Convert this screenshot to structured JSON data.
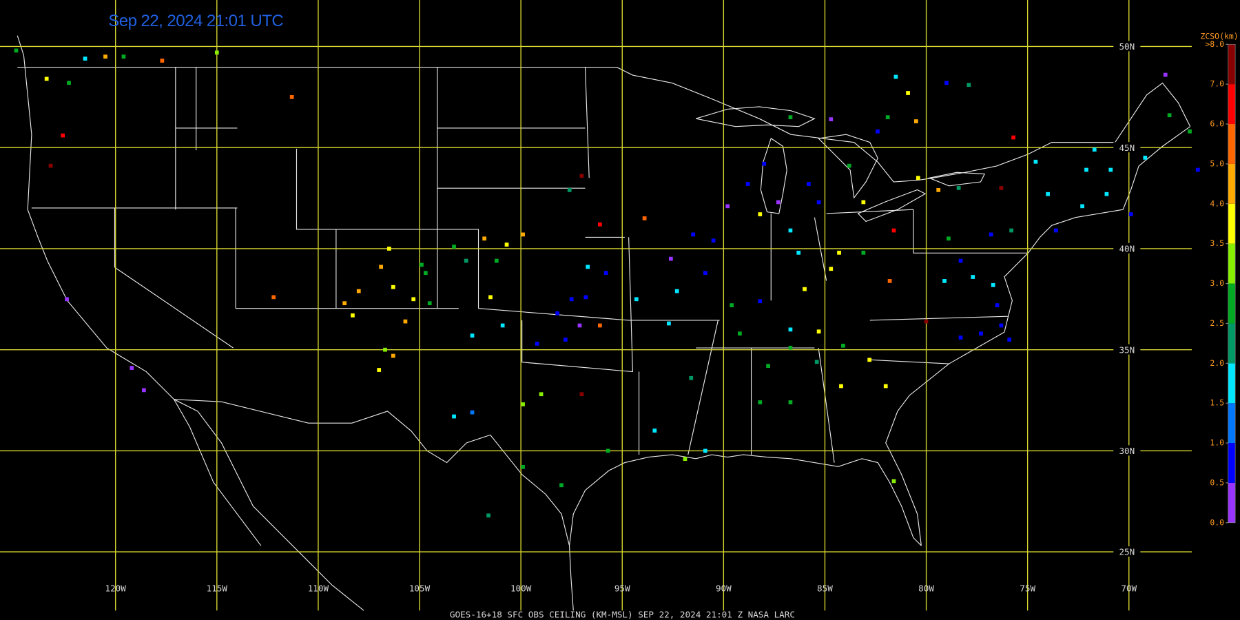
{
  "map": {
    "title": "Sep 22, 2024 21:01 UTC",
    "footer": "GOES-16+18  SFC OBS CEILING (KM-MSL)  SEP 22, 2024 21:01 Z  NASA LARC",
    "lonlim": [
      -125.7,
      -66.9
    ],
    "latlim": [
      22.1,
      52.3
    ],
    "lon_ticks": [
      {
        "value": -120,
        "label": "120W"
      },
      {
        "value": -115,
        "label": "115W"
      },
      {
        "value": -110,
        "label": "110W"
      },
      {
        "value": -105,
        "label": "105W"
      },
      {
        "value": -100,
        "label": "100W"
      },
      {
        "value": -95,
        "label": "95W"
      },
      {
        "value": -90,
        "label": "90W"
      },
      {
        "value": -85,
        "label": "85W"
      },
      {
        "value": -80,
        "label": "80W"
      },
      {
        "value": -75,
        "label": "75W"
      },
      {
        "value": -70,
        "label": "70W"
      }
    ],
    "lat_ticks": [
      {
        "value": 50,
        "label": "50N"
      },
      {
        "value": 45,
        "label": "45N"
      },
      {
        "value": 40,
        "label": "40N"
      },
      {
        "value": 35,
        "label": "35N"
      },
      {
        "value": 30,
        "label": "30N"
      },
      {
        "value": 25,
        "label": "25N"
      }
    ],
    "colorbar": {
      "title": "ZCSO(km)",
      "ticks": [
        {
          "value": 0,
          "label": "0.0"
        },
        {
          "value": 0.5,
          "label": "0.5"
        },
        {
          "value": 1,
          "label": "1.0"
        },
        {
          "value": 1.5,
          "label": "1.5"
        },
        {
          "value": 2,
          "label": "2.0"
        },
        {
          "value": 2.5,
          "label": "2.5"
        },
        {
          "value": 3,
          "label": "3.0"
        },
        {
          "value": 3.5,
          "label": "3.5"
        },
        {
          "value": 4,
          "label": "4.0"
        },
        {
          "value": 5,
          "label": "5.0"
        },
        {
          "value": 6,
          "label": "6.0"
        },
        {
          "value": 7,
          "label": "7.0"
        },
        {
          "value": 8,
          "label": ">8.0"
        }
      ],
      "colors": [
        "#9933ff",
        "#0000ff",
        "#0077ff",
        "#00e8ff",
        "#009966",
        "#00aa22",
        "#88ee00",
        "#ffff00",
        "#ffaa00",
        "#ff6600",
        "#ff0000",
        "#880000"
      ]
    },
    "stations": {
      "lon": [
        -124.9,
        -123.4,
        -122.3,
        -121.5,
        -120.5,
        -119.6,
        -117.7,
        -115.0,
        -111.3,
        -123.2,
        -122.6,
        -122.4,
        -119.2,
        -118.6,
        -112.2,
        -106.5,
        -106.9,
        -108.0,
        -108.7,
        -108.3,
        -106.3,
        -105.3,
        -105.7,
        -106.3,
        -107.0,
        -106.7,
        -104.7,
        -104.9,
        -104.5,
        -103.3,
        -101.8,
        -99.9,
        -100.7,
        -101.2,
        -102.7,
        -97.5,
        -96.8,
        -98.2,
        -97.8,
        -99.2,
        -97.1,
        -96.7,
        -95.8,
        -96.1,
        -100.9,
        -102.4,
        -101.5,
        -103.3,
        -102.4,
        -99.9,
        -97.0,
        -99.0,
        -99.9,
        -98.0,
        -101.6,
        -93.4,
        -95.7,
        -94.3,
        -92.7,
        -93.9,
        -96.1,
        -97.0,
        -97.6,
        -92.6,
        -92.3,
        -91.5,
        -90.5,
        -90.9,
        -89.8,
        -88.8,
        -88.0,
        -88.2,
        -87.3,
        -86.7,
        -86.3,
        -85.8,
        -85.3,
        -84.7,
        -83.8,
        -83.1,
        -84.3,
        -84.7,
        -86.0,
        -83.1,
        -81.6,
        -80.4,
        -79.4,
        -78.4,
        -76.3,
        -89.6,
        -89.2,
        -88.2,
        -86.7,
        -86.7,
        -85.3,
        -84.1,
        -82.8,
        -81.8,
        -80.0,
        -79.1,
        -78.3,
        -77.7,
        -76.7,
        -76.5,
        -76.3,
        -75.9,
        -77.3,
        -78.3,
        -76.8,
        -75.8,
        -73.6,
        -72.3,
        -71.1,
        -69.9,
        -72.1,
        -70.9,
        -71.7,
        -69.2,
        -68.0,
        -68.2,
        -74.6,
        -74.0,
        -75.7,
        -81.5,
        -79.0,
        -77.9,
        -80.9,
        -81.9,
        -80.5,
        -67.0,
        -66.6,
        -81.6,
        -82.0,
        -84.2,
        -85.4,
        -87.8,
        -86.7,
        -88.2,
        -91.6,
        -90.9,
        -91.9,
        -86.7,
        -82.4,
        -78.9
      ],
      "lat": [
        49.8,
        48.4,
        48.2,
        49.4,
        49.5,
        49.5,
        49.3,
        49.7,
        47.5,
        44.1,
        45.6,
        37.5,
        34.1,
        33.0,
        37.6,
        40.0,
        39.1,
        37.9,
        37.3,
        36.7,
        38.1,
        37.5,
        36.4,
        34.7,
        34.0,
        35.0,
        38.8,
        39.2,
        37.3,
        40.1,
        40.5,
        40.7,
        40.2,
        39.4,
        39.4,
        37.5,
        37.6,
        36.8,
        35.5,
        35.3,
        36.2,
        39.1,
        38.8,
        36.2,
        36.2,
        35.7,
        37.6,
        31.7,
        31.9,
        32.3,
        32.8,
        32.8,
        29.2,
        28.3,
        26.8,
        31.0,
        30.0,
        37.5,
        36.3,
        41.5,
        41.2,
        43.6,
        42.9,
        39.5,
        37.9,
        40.7,
        40.4,
        38.8,
        42.1,
        43.2,
        44.2,
        41.7,
        42.3,
        40.9,
        39.8,
        43.2,
        42.3,
        46.4,
        44.1,
        42.3,
        39.8,
        39.0,
        38.0,
        39.8,
        40.9,
        43.5,
        42.9,
        43.0,
        43.0,
        37.2,
        35.8,
        37.4,
        36.0,
        35.1,
        35.9,
        35.2,
        34.5,
        38.4,
        36.4,
        38.4,
        39.4,
        38.6,
        38.2,
        37.2,
        36.2,
        35.5,
        35.8,
        35.6,
        40.7,
        40.9,
        40.9,
        42.1,
        42.7,
        41.7,
        43.9,
        43.9,
        44.9,
        44.5,
        46.6,
        48.6,
        44.3,
        42.7,
        45.5,
        48.5,
        48.2,
        48.1,
        47.7,
        46.5,
        46.3,
        45.8,
        43.9,
        28.5,
        33.2,
        33.2,
        34.4,
        34.2,
        32.4,
        32.4,
        33.6,
        30.0,
        29.6,
        46.5,
        45.8,
        40.5
      ],
      "ceiling": [
        2.7,
        3.7,
        2.7,
        1.8,
        4.5,
        2.7,
        5.5,
        3.2,
        5.5,
        7.5,
        6.5,
        0.3,
        0.3,
        0.3,
        5.5,
        3.7,
        4.5,
        4.5,
        4.5,
        3.7,
        3.7,
        3.7,
        4.5,
        4.5,
        3.7,
        3.2,
        2.7,
        2.7,
        2.7,
        2.7,
        4.5,
        4.5,
        3.7,
        2.7,
        2.2,
        0.8,
        0.8,
        0.8,
        0.8,
        0.8,
        0.3,
        1.8,
        0.8,
        5.5,
        1.8,
        1.8,
        3.7,
        1.8,
        1.2,
        3.2,
        7.5,
        3.2,
        2.7,
        2.7,
        2.2,
        1.8,
        2.7,
        1.8,
        1.8,
        5.5,
        6.5,
        7.5,
        2.2,
        0.3,
        1.8,
        0.8,
        0.8,
        0.8,
        0.3,
        0.8,
        0.8,
        3.7,
        0.3,
        1.8,
        1.8,
        0.8,
        0.8,
        0.3,
        2.7,
        3.7,
        3.7,
        3.7,
        3.7,
        2.7,
        6.5,
        3.7,
        4.5,
        2.2,
        7.5,
        2.7,
        2.7,
        0.8,
        1.8,
        2.7,
        3.7,
        2.7,
        3.7,
        5.5,
        7.5,
        1.8,
        0.8,
        1.8,
        1.8,
        0.8,
        0.8,
        0.8,
        0.8,
        0.8,
        0.8,
        2.2,
        0.8,
        1.8,
        1.8,
        0.8,
        1.8,
        1.8,
        1.8,
        1.8,
        2.7,
        0.3,
        1.8,
        1.8,
        6.5,
        1.8,
        0.8,
        2.2,
        3.7,
        2.7,
        4.5,
        2.7,
        0.8,
        3.2,
        3.7,
        3.7,
        2.2,
        2.7,
        2.7,
        2.7,
        2.2,
        1.8,
        3.2,
        2.7,
        0.8,
        2.7
      ]
    }
  }
}
